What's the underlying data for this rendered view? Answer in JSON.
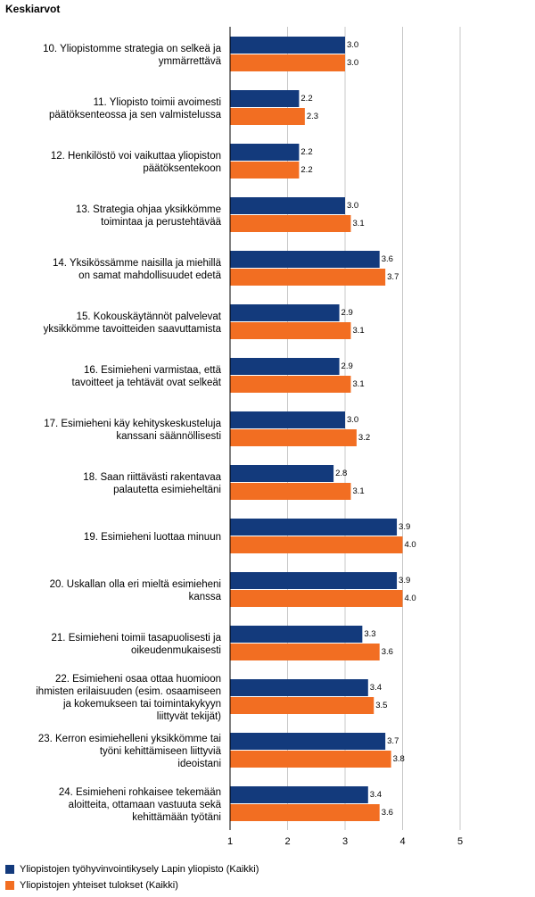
{
  "chart_data": {
    "type": "bar",
    "orientation": "horizontal",
    "title": "Keskiarvot",
    "xlim": [
      1,
      5
    ],
    "xticks": [
      "1",
      "2",
      "3",
      "4",
      "5"
    ],
    "grid": true,
    "legend_position": "bottom-left",
    "categories": [
      [
        "10. Yliopistomme strategia on selkeä ja",
        "ymmärrettävä"
      ],
      [
        "11. Yliopisto toimii avoimesti",
        "päätöksenteossa ja sen valmistelussa"
      ],
      [
        "12. Henkilöstö voi vaikuttaa yliopiston",
        "päätöksentekoon"
      ],
      [
        "13. Strategia ohjaa yksikkömme",
        "toimintaa ja perustehtävää"
      ],
      [
        "14. Yksikössämme naisilla ja miehillä",
        "on samat mahdollisuudet edetä"
      ],
      [
        "15. Kokouskäytännöt palvelevat",
        "yksikkömme tavoitteiden saavuttamista"
      ],
      [
        "16. Esimieheni varmistaa, että",
        "tavoitteet ja tehtävät ovat selkeät"
      ],
      [
        "17. Esimieheni käy kehityskeskusteluja",
        "kanssani säännöllisesti"
      ],
      [
        "18. Saan riittävästi rakentavaa",
        "palautetta esimieheltäni"
      ],
      [
        "19. Esimieheni luottaa minuun"
      ],
      [
        "20. Uskallan olla eri mieltä esimieheni",
        "kanssa"
      ],
      [
        "21. Esimieheni toimii tasapuolisesti ja",
        "oikeudenmukaisesti"
      ],
      [
        "22. Esimieheni osaa ottaa huomioon",
        "ihmisten erilaisuuden (esim. osaamiseen",
        "ja kokemukseen tai toimintakykyyn",
        "liittyvät tekijät)"
      ],
      [
        "23. Kerron esimiehelleni yksikkömme tai",
        "työni kehittämiseen liittyviä",
        "ideoistani"
      ],
      [
        "24. Esimieheni rohkaisee tekemään",
        "aloitteita, ottamaan vastuuta sekä",
        "kehittämään työtäni"
      ]
    ],
    "series": [
      {
        "name": "Yliopistojen työhyvinvointikysely Lapin yliopisto (Kaikki)",
        "color": "#133a7c",
        "values": [
          3.0,
          2.2,
          2.2,
          3.0,
          3.6,
          2.9,
          2.9,
          3.0,
          2.8,
          3.9,
          3.9,
          3.3,
          3.4,
          3.7,
          3.4
        ],
        "labels": [
          "3.0",
          "2.2",
          "2.2",
          "3.0",
          "3.6",
          "2.9",
          "2.9",
          "3.0",
          "2.8",
          "3.9",
          "3.9",
          "3.3",
          "3.4",
          "3.7",
          "3.4"
        ]
      },
      {
        "name": "Yliopistojen yhteiset tulokset (Kaikki)",
        "color": "#f26e22",
        "values": [
          3.0,
          2.3,
          2.2,
          3.1,
          3.7,
          3.1,
          3.1,
          3.2,
          3.1,
          4.0,
          4.0,
          3.6,
          3.5,
          3.8,
          3.6
        ],
        "labels": [
          "3.0",
          "2.3",
          "2.2",
          "3.1",
          "3.7",
          "3.1",
          "3.1",
          "3.2",
          "3.1",
          "4.0",
          "4.0",
          "3.6",
          "3.5",
          "3.8",
          "3.6"
        ]
      }
    ]
  }
}
